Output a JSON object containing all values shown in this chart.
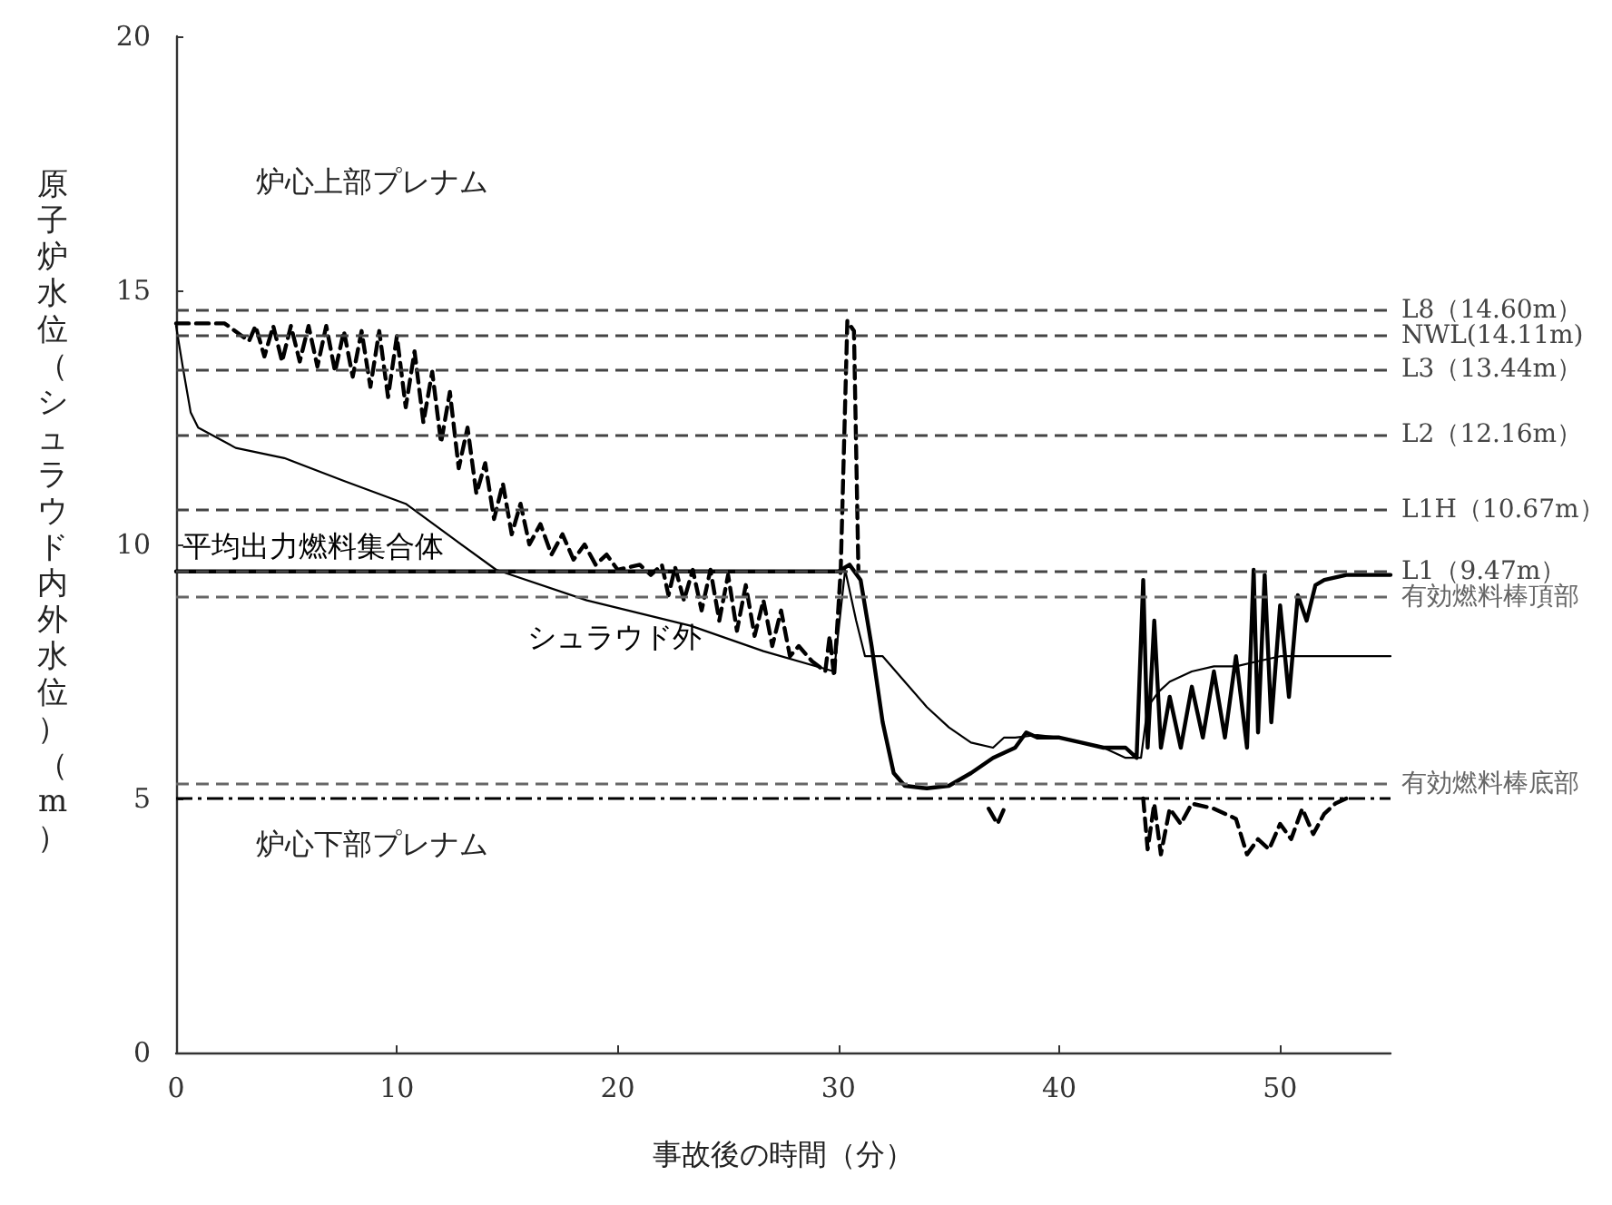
{
  "chart_data": {
    "type": "line",
    "xlabel": "事故後の時間（分）",
    "ylabel": "原子炉水位（シュラウド内外水位）（m）",
    "xlim": [
      0,
      55
    ],
    "xticks": [
      0,
      10,
      20,
      30,
      40,
      50
    ],
    "ylim": [
      0,
      20
    ],
    "yticks": [
      0,
      5,
      10,
      15,
      20
    ],
    "grid": false,
    "legend": false,
    "marker": "none",
    "series": [
      {
        "name": "平均出力燃料集合体",
        "color": "#000000",
        "line_style": "solid",
        "x": [
          0,
          30,
          30.5,
          31,
          31.5,
          32,
          32.5,
          33,
          34,
          35,
          36,
          37,
          38,
          38.5,
          39,
          40,
          41,
          42,
          43,
          43.5,
          43.8,
          44,
          44.3,
          44.6,
          45,
          45.5,
          46,
          46.5,
          47,
          47.5,
          48,
          48.5,
          48.8,
          49,
          49.3,
          49.6,
          50,
          50.4,
          50.8,
          51.2,
          51.6,
          52,
          53,
          54,
          55
        ],
        "values": [
          9.47,
          9.47,
          9.6,
          9.3,
          8,
          6.5,
          5.5,
          5.25,
          5.2,
          5.25,
          5.5,
          5.8,
          6,
          6.3,
          6.2,
          6.2,
          6.1,
          6,
          6,
          5.8,
          9.3,
          6,
          8.5,
          6,
          7,
          6,
          7.2,
          6.2,
          7.5,
          6.2,
          7.8,
          6,
          9.5,
          6.3,
          9.4,
          6.5,
          8.8,
          7,
          9,
          8.5,
          9.2,
          9.3,
          9.4,
          9.4,
          9.4
        ]
      },
      {
        "name": "シュラウド外",
        "color": "#000000",
        "line_style": "solid",
        "x": [
          0,
          0.3,
          0.66,
          1,
          2.7,
          4.9,
          7.6,
          10.4,
          12.6,
          14.5,
          18.6,
          23.3,
          26.6,
          29.8,
          30.3,
          30.8,
          31.2,
          32,
          33,
          34,
          35,
          36,
          37,
          37.5,
          38,
          39,
          40,
          41,
          42,
          43,
          43.7,
          44,
          44.5,
          45,
          46,
          47,
          48,
          49,
          50,
          52,
          54,
          55
        ],
        "values": [
          14.3,
          13.5,
          12.6,
          12.3,
          11.9,
          11.7,
          11.25,
          10.8,
          10.1,
          9.5,
          8.9,
          8.4,
          7.9,
          7.5,
          9.5,
          8.5,
          7.8,
          7.8,
          7.3,
          6.8,
          6.4,
          6.1,
          6,
          6.2,
          6.2,
          6.25,
          6.2,
          6.1,
          6,
          5.8,
          5.8,
          6.8,
          7.1,
          7.3,
          7.5,
          7.6,
          7.6,
          7.7,
          7.8,
          7.8,
          7.8,
          7.8
        ]
      },
      {
        "color": "#000000",
        "line_style": "dashed",
        "x": [
          0,
          2.2,
          3.3,
          3.6,
          4,
          4.4,
          4.8,
          5.2,
          5.6,
          6,
          6.4,
          6.8,
          7.2,
          7.6,
          8,
          8.4,
          8.8,
          9.2,
          9.6,
          10,
          10.4,
          10.8,
          11.2,
          11.6,
          12,
          12.4,
          12.8,
          13.2,
          13.6,
          14,
          14.4,
          14.8,
          15.2,
          15.6,
          16,
          16.5,
          17,
          17.5,
          18,
          18.5,
          19,
          19.5,
          20,
          21,
          21.5,
          22,
          22.3,
          22.6,
          23,
          23.4,
          23.8,
          24.2,
          24.6,
          25,
          25.4,
          25.8,
          26.2,
          26.6,
          27,
          27.4,
          27.8,
          28.2,
          28.8,
          29.4,
          29.6,
          29.8,
          30.1,
          30.4,
          30.7,
          30.9,
          33,
          36.8,
          37.2,
          37.6,
          40,
          43.8,
          44,
          44.3,
          44.6,
          45,
          45.5,
          46,
          47,
          48,
          48.5,
          49,
          49.5,
          50,
          50.5,
          51,
          51.5,
          52,
          52.5,
          53
        ],
        "values": [
          14.35,
          14.35,
          14,
          14.3,
          13.7,
          14.3,
          13.6,
          14.3,
          13.6,
          14.3,
          13.5,
          14.3,
          13.4,
          14.2,
          13.3,
          14.2,
          13.1,
          14.2,
          12.9,
          14.1,
          12.7,
          13.8,
          12.4,
          13.4,
          12,
          13,
          11.5,
          12.3,
          11,
          11.6,
          10.5,
          11.2,
          10.2,
          10.8,
          10,
          10.4,
          9.8,
          10.2,
          9.7,
          10,
          9.6,
          9.8,
          9.5,
          9.6,
          9.4,
          9.6,
          9,
          9.55,
          8.9,
          9.5,
          8.7,
          9.5,
          8.5,
          9.4,
          8.3,
          9.2,
          8.2,
          8.9,
          8,
          8.7,
          7.8,
          8,
          7.7,
          7.5,
          8.2,
          7.4,
          9.5,
          14.4,
          14.2,
          9.5,
          null,
          4.8,
          4.5,
          4.9,
          null,
          5,
          4,
          4.9,
          3.9,
          4.8,
          4.5,
          4.9,
          4.8,
          4.6,
          3.9,
          4.2,
          4,
          4.5,
          4.2,
          4.8,
          4.3,
          4.7,
          4.9,
          5
        ]
      }
    ],
    "ref_lines": [
      {
        "axis": "y",
        "value": 14.6,
        "label": "L8（14.60m）",
        "color": "#444444",
        "line_style": "dashed"
      },
      {
        "axis": "y",
        "value": 14.11,
        "label": "NWL(14.11m)",
        "color": "#444444",
        "line_style": "dashed"
      },
      {
        "axis": "y",
        "value": 13.44,
        "label": "L3（13.44m）",
        "color": "#444444",
        "line_style": "dashed"
      },
      {
        "axis": "y",
        "value": 12.16,
        "label": "L2（12.16m）",
        "color": "#444444",
        "line_style": "dashed"
      },
      {
        "axis": "y",
        "value": 10.67,
        "label": "L1H（10.67m）",
        "color": "#444444",
        "line_style": "dashed"
      },
      {
        "axis": "y",
        "value": 9.47,
        "label": "L1（9.47m）",
        "color": "#444444",
        "line_style": "dashed"
      },
      {
        "axis": "y",
        "value": 8.96,
        "label": "有効燃料棒頂部",
        "color": "#666666",
        "line_style": "dashed"
      },
      {
        "axis": "y",
        "value": 5.29,
        "label": "有効燃料棒底部",
        "color": "#666666",
        "line_style": "dashed"
      },
      {
        "axis": "y",
        "value": 5.0,
        "color": "#000000",
        "line_style": "dashdot"
      }
    ],
    "annotations": [
      "炉心上部プレナム",
      "炉心下部プレナム"
    ]
  }
}
